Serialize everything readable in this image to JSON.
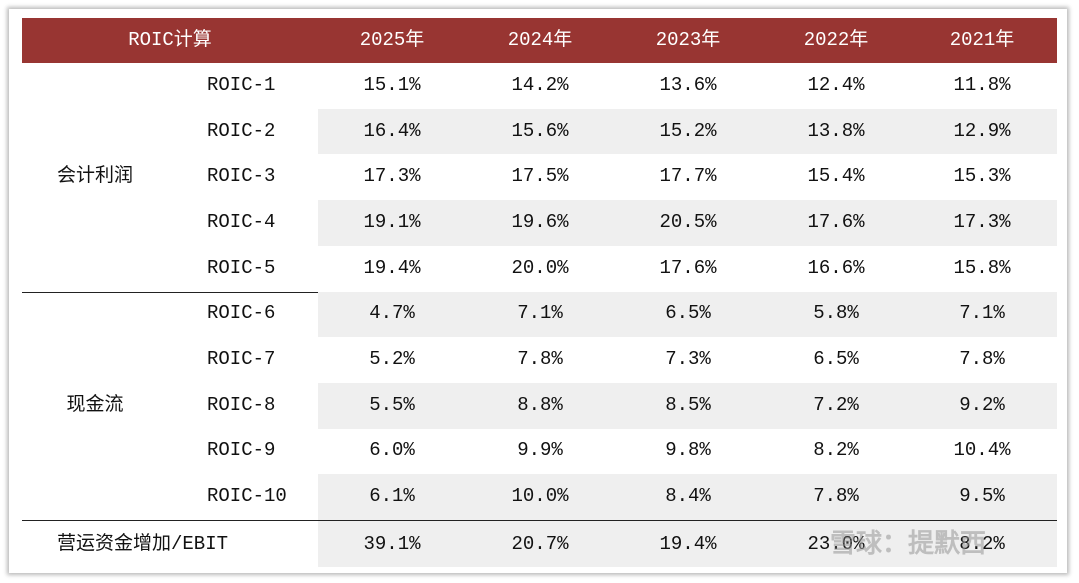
{
  "header": [
    "ROIC计算",
    "2025年",
    "2024年",
    "2023年",
    "2022年",
    "2021年"
  ],
  "groups": [
    {
      "label": "会计利润",
      "rows": [
        {
          "label": "ROIC-1",
          "values": [
            "15.1%",
            "14.2%",
            "13.6%",
            "12.4%",
            "11.8%"
          ]
        },
        {
          "label": "ROIC-2",
          "values": [
            "16.4%",
            "15.6%",
            "15.2%",
            "13.8%",
            "12.9%"
          ]
        },
        {
          "label": "ROIC-3",
          "values": [
            "17.3%",
            "17.5%",
            "17.7%",
            "15.4%",
            "15.3%"
          ]
        },
        {
          "label": "ROIC-4",
          "values": [
            "19.1%",
            "19.6%",
            "20.5%",
            "17.6%",
            "17.3%"
          ]
        },
        {
          "label": "ROIC-5",
          "values": [
            "19.4%",
            "20.0%",
            "17.6%",
            "16.6%",
            "15.8%"
          ]
        }
      ]
    },
    {
      "label": "现金流",
      "rows": [
        {
          "label": "ROIC-6",
          "values": [
            "4.7%",
            "7.1%",
            "6.5%",
            "5.8%",
            "7.1%"
          ]
        },
        {
          "label": "ROIC-7",
          "values": [
            "5.2%",
            "7.8%",
            "7.3%",
            "6.5%",
            "7.8%"
          ]
        },
        {
          "label": "ROIC-8",
          "values": [
            "5.5%",
            "8.8%",
            "8.5%",
            "7.2%",
            "9.2%"
          ]
        },
        {
          "label": "ROIC-9",
          "values": [
            "6.0%",
            "9.9%",
            "9.8%",
            "8.2%",
            "10.4%"
          ]
        },
        {
          "label": "ROIC-10",
          "values": [
            "6.1%",
            "10.0%",
            "8.4%",
            "7.8%",
            "9.5%"
          ]
        }
      ]
    }
  ],
  "footer_row": {
    "label": "营运资金增加/EBIT",
    "values": [
      "39.1%",
      "20.7%",
      "19.4%",
      "23.0%",
      "8.2%"
    ]
  },
  "watermark": "雪球：提默西"
}
